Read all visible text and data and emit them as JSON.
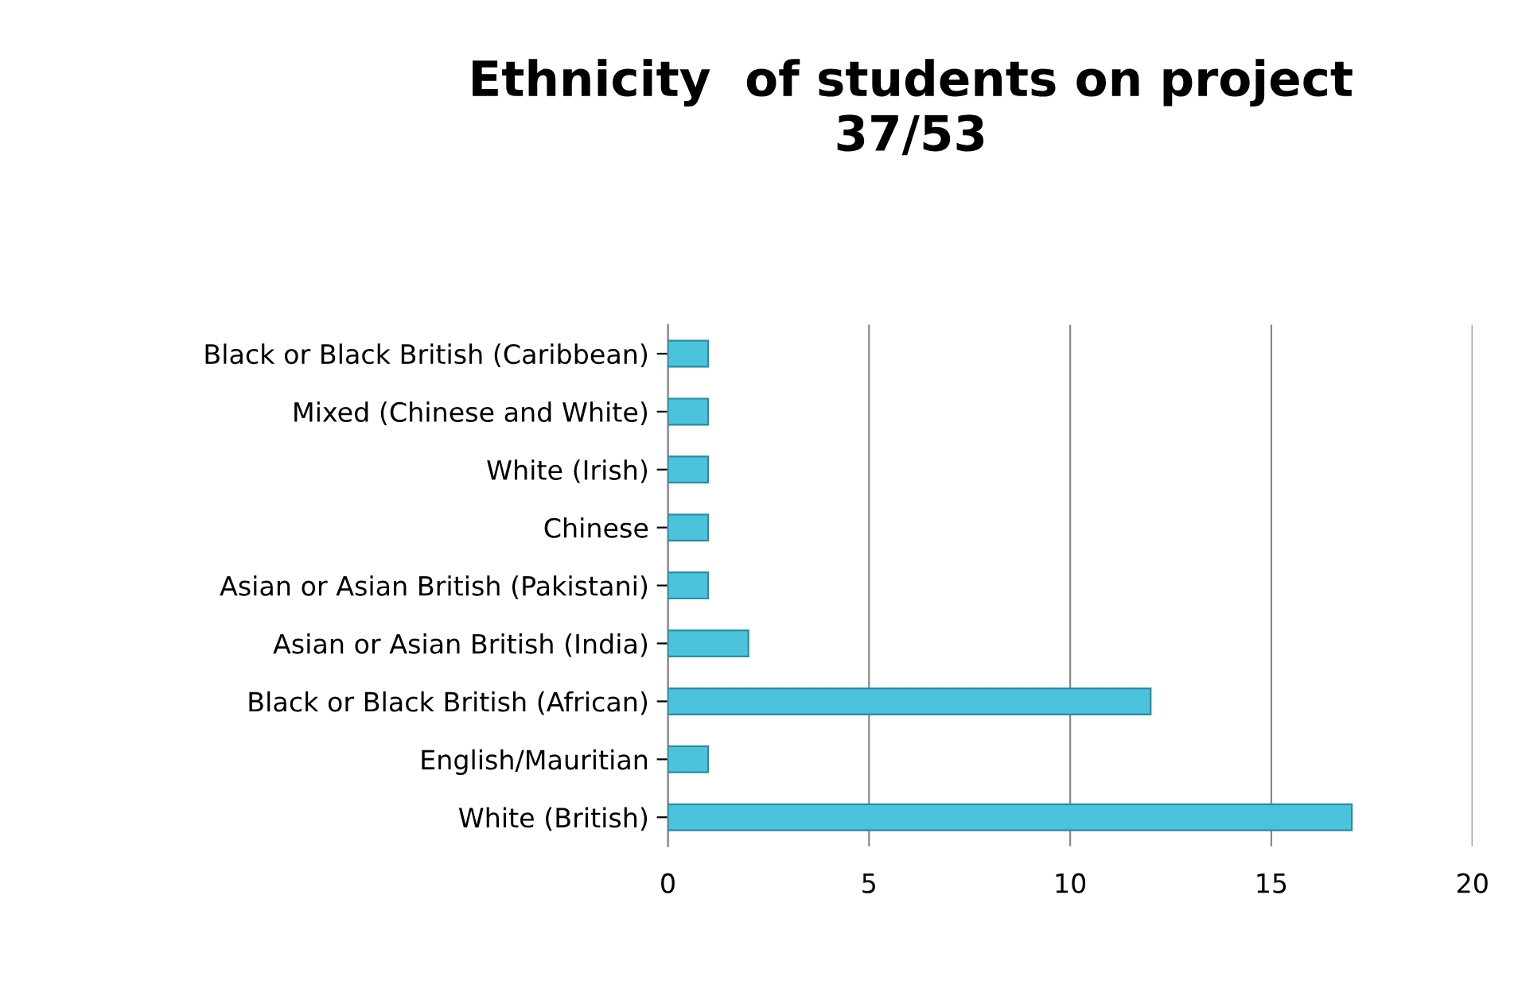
{
  "chart_data": {
    "type": "bar",
    "orientation": "horizontal",
    "title": "Ethnicity  of students on project\n37/53",
    "categories": [
      "Black or Black British (Caribbean)",
      "Mixed (Chinese and White)",
      "White (Irish)",
      "Chinese",
      "Asian or Asian British (Pakistani)",
      "Asian or Asian British (India)",
      "Black or Black British (African)",
      "English/Mauritian",
      "White (British)"
    ],
    "values": [
      1,
      1,
      1,
      1,
      1,
      2,
      12,
      1,
      17
    ],
    "color": "#4bc3dc",
    "xlim": [
      0,
      20
    ],
    "xticks": [
      0,
      5,
      10,
      15,
      20
    ],
    "grid": "x"
  }
}
